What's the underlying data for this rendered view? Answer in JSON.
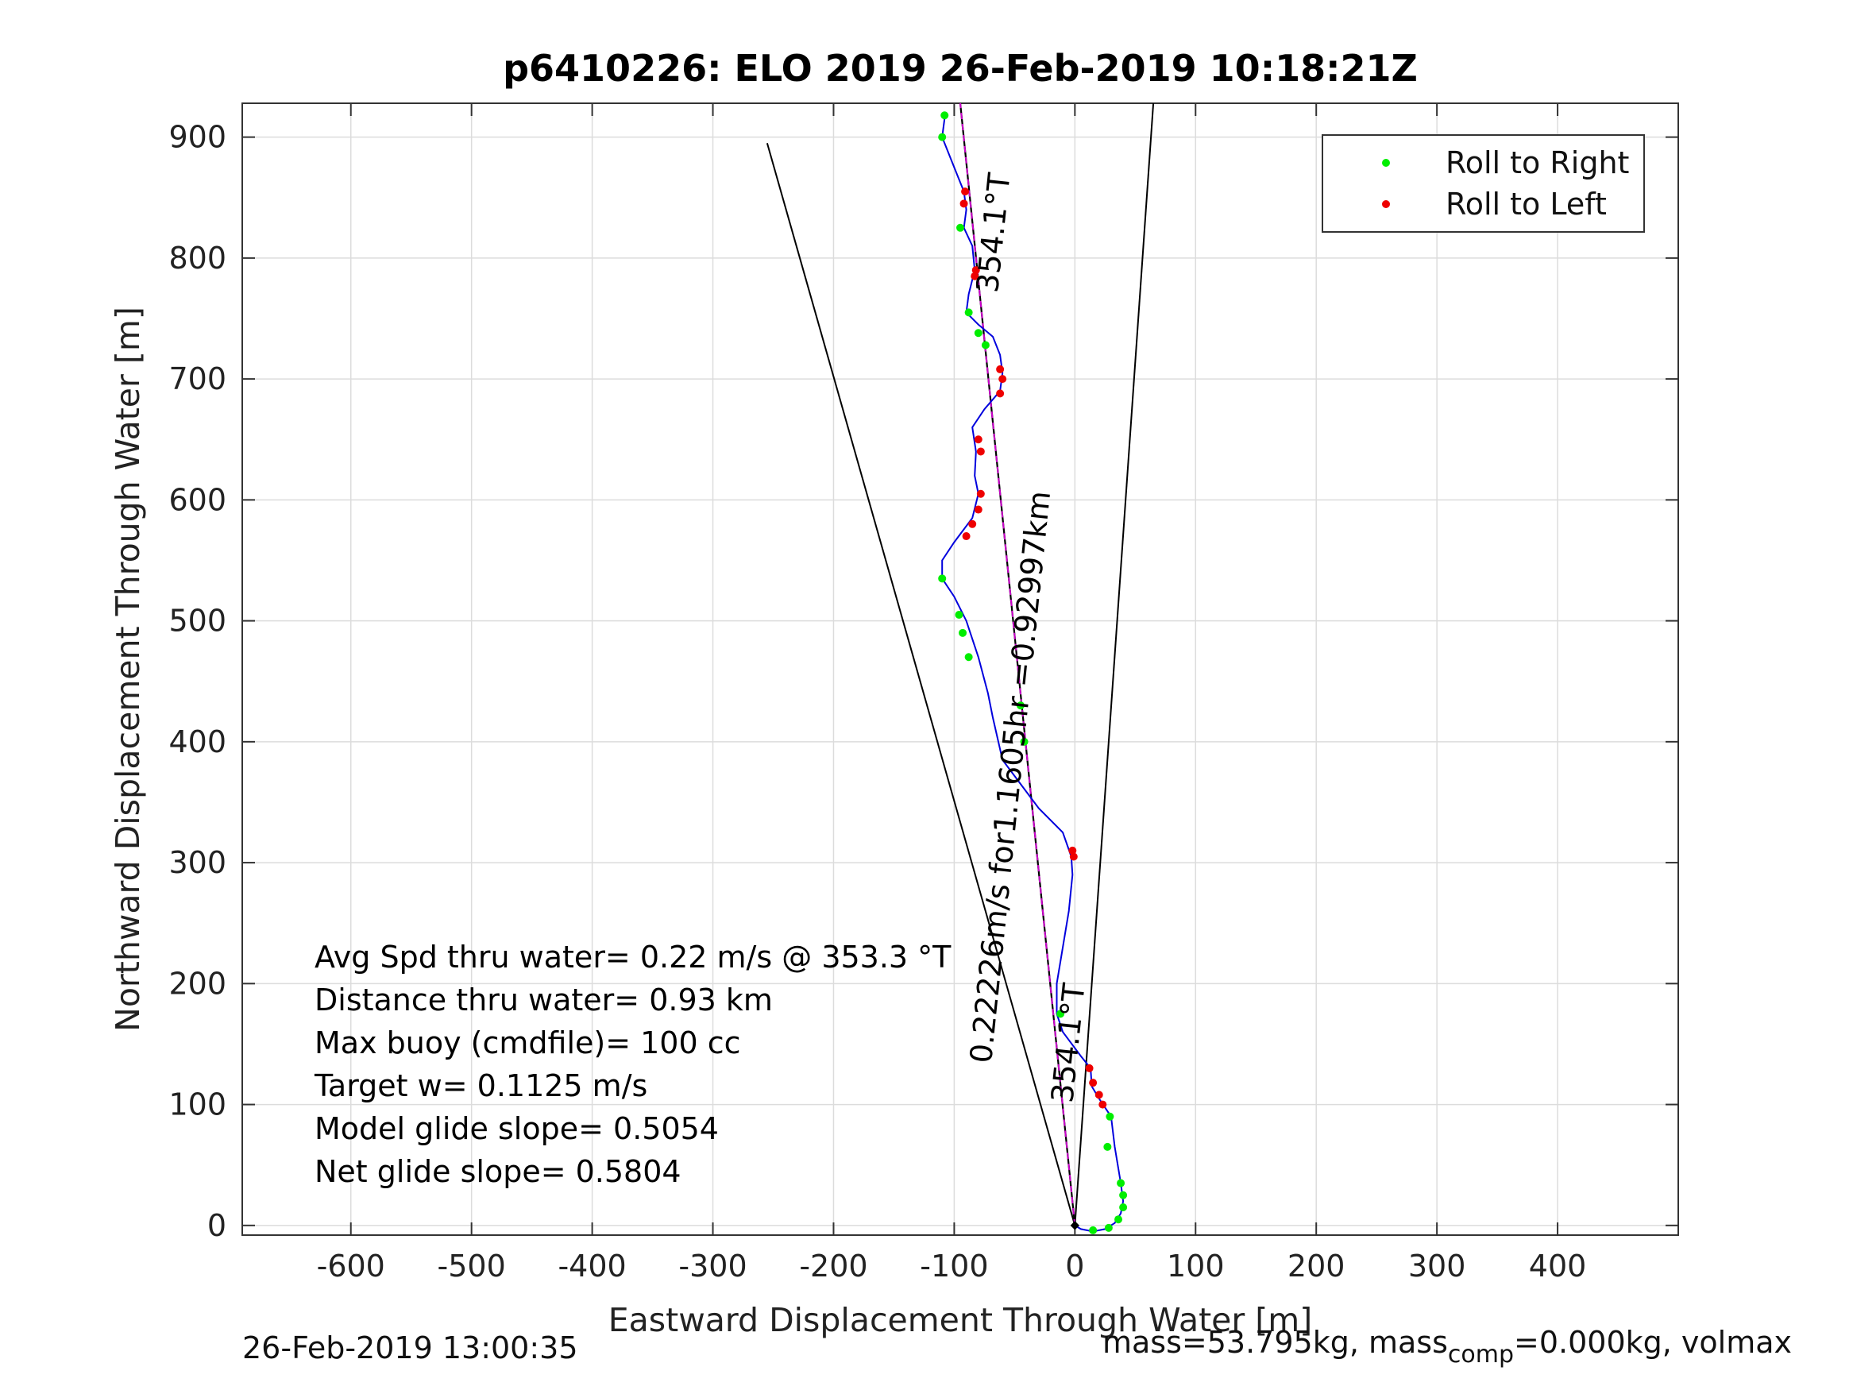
{
  "chart_data": {
    "type": "scatter",
    "title": "p6410226: ELO 2019 26-Feb-2019 10:18:21Z",
    "xlabel": "Eastward Displacement Through Water [m]",
    "ylabel": "Northward Displacement Through Water [m]",
    "xlim": [
      -690,
      500
    ],
    "ylim": [
      -8,
      928
    ],
    "xticks": [
      -600,
      -500,
      -400,
      -300,
      -200,
      -100,
      0,
      100,
      200,
      300,
      400
    ],
    "yticks": [
      0,
      100,
      200,
      300,
      400,
      500,
      600,
      700,
      800,
      900
    ],
    "xtick_labels": [
      "-600",
      "-500",
      "-400",
      "-300",
      "-200",
      "-100",
      "0",
      "100",
      "200",
      "300",
      "400"
    ],
    "ytick_labels": [
      "0",
      "100",
      "200",
      "300",
      "400",
      "500",
      "600",
      "700",
      "800",
      "900"
    ],
    "grid": true,
    "legend_position": "top-right",
    "legend": [
      {
        "label": "Roll to Right",
        "color": "#00ee00"
      },
      {
        "label": "Roll to Left",
        "color": "#ee0000"
      }
    ],
    "track_color": "#0000dd",
    "track": [
      [
        0,
        0
      ],
      [
        5,
        -3
      ],
      [
        15,
        -5
      ],
      [
        25,
        -3
      ],
      [
        33,
        2
      ],
      [
        38,
        10
      ],
      [
        40,
        20
      ],
      [
        38,
        35
      ],
      [
        33,
        65
      ],
      [
        30,
        90
      ],
      [
        20,
        105
      ],
      [
        14,
        115
      ],
      [
        13,
        130
      ],
      [
        5,
        140
      ],
      [
        -10,
        160
      ],
      [
        -15,
        175
      ],
      [
        -15,
        200
      ],
      [
        -10,
        230
      ],
      [
        -5,
        260
      ],
      [
        -2,
        290
      ],
      [
        -3,
        305
      ],
      [
        -10,
        325
      ],
      [
        -30,
        345
      ],
      [
        -45,
        365
      ],
      [
        -60,
        385
      ],
      [
        -68,
        420
      ],
      [
        -72,
        440
      ],
      [
        -80,
        470
      ],
      [
        -90,
        500
      ],
      [
        -100,
        520
      ],
      [
        -110,
        535
      ],
      [
        -110,
        550
      ],
      [
        -100,
        565
      ],
      [
        -85,
        585
      ],
      [
        -80,
        605
      ],
      [
        -83,
        620
      ],
      [
        -82,
        640
      ],
      [
        -85,
        660
      ],
      [
        -75,
        675
      ],
      [
        -62,
        690
      ],
      [
        -60,
        705
      ],
      [
        -62,
        720
      ],
      [
        -68,
        735
      ],
      [
        -80,
        745
      ],
      [
        -90,
        755
      ],
      [
        -88,
        770
      ],
      [
        -83,
        790
      ],
      [
        -85,
        810
      ],
      [
        -92,
        825
      ],
      [
        -90,
        840
      ],
      [
        -92,
        855
      ],
      [
        -100,
        875
      ],
      [
        -110,
        900
      ],
      [
        -108,
        915
      ]
    ],
    "roll_right": [
      [
        15,
        -4
      ],
      [
        28,
        -2
      ],
      [
        36,
        5
      ],
      [
        40,
        15
      ],
      [
        40,
        25
      ],
      [
        38,
        35
      ],
      [
        29,
        90
      ],
      [
        27,
        65
      ],
      [
        -12,
        175
      ],
      [
        -42,
        400
      ],
      [
        -45,
        430
      ],
      [
        -88,
        470
      ],
      [
        -93,
        490
      ],
      [
        -96,
        505
      ],
      [
        -110,
        535
      ],
      [
        -88,
        755
      ],
      [
        -80,
        738
      ],
      [
        -74,
        728
      ],
      [
        -95,
        825
      ],
      [
        -110,
        900
      ],
      [
        -108,
        918
      ]
    ],
    "roll_left": [
      [
        12,
        130
      ],
      [
        15,
        118
      ],
      [
        20,
        108
      ],
      [
        23,
        100
      ],
      [
        -2,
        310
      ],
      [
        -1,
        305
      ],
      [
        -90,
        570
      ],
      [
        -85,
        580
      ],
      [
        -80,
        592
      ],
      [
        -78,
        605
      ],
      [
        -78,
        640
      ],
      [
        -80,
        650
      ],
      [
        -62,
        688
      ],
      [
        -60,
        700
      ],
      [
        -62,
        708
      ],
      [
        -83,
        785
      ],
      [
        -82,
        790
      ],
      [
        -92,
        845
      ],
      [
        -91,
        855
      ]
    ],
    "heading_line": {
      "label": "354.1°T",
      "points": [
        [
          0,
          0
        ],
        [
          -95,
          928
        ]
      ],
      "color": "#cc00cc"
    },
    "cone_lines": [
      [
        [
          0,
          0
        ],
        [
          -255,
          895
        ]
      ],
      [
        [
          0,
          0
        ],
        [
          65,
          928
        ]
      ]
    ],
    "annotations": [
      {
        "text": "354.1°T",
        "x": -59,
        "y": 820,
        "angle": -84.1
      },
      {
        "text": "354.1°T",
        "x": 3,
        "y": 150,
        "angle": -84.1
      },
      {
        "text": "0.22226m/s for1.1605hr =0.92997km",
        "x": -45,
        "y": 370,
        "angle": -84.1
      }
    ]
  },
  "stats": [
    "Avg Spd thru water=  0.22 m/s @ 353.3  °T",
    "Distance thru water=  0.93 km",
    "Max buoy (cmdfile)= 100 cc",
    "Target w= 0.1125 m/s",
    "Model glide slope= 0.5054",
    "Net glide slope= 0.5804"
  ],
  "footer": {
    "timestamp": "26-Feb-2019 13:00:35",
    "mass_prefix": "mass=53.795kg, mass",
    "mass_sub": "comp",
    "mass_suffix": "=0.000kg, volmax"
  }
}
